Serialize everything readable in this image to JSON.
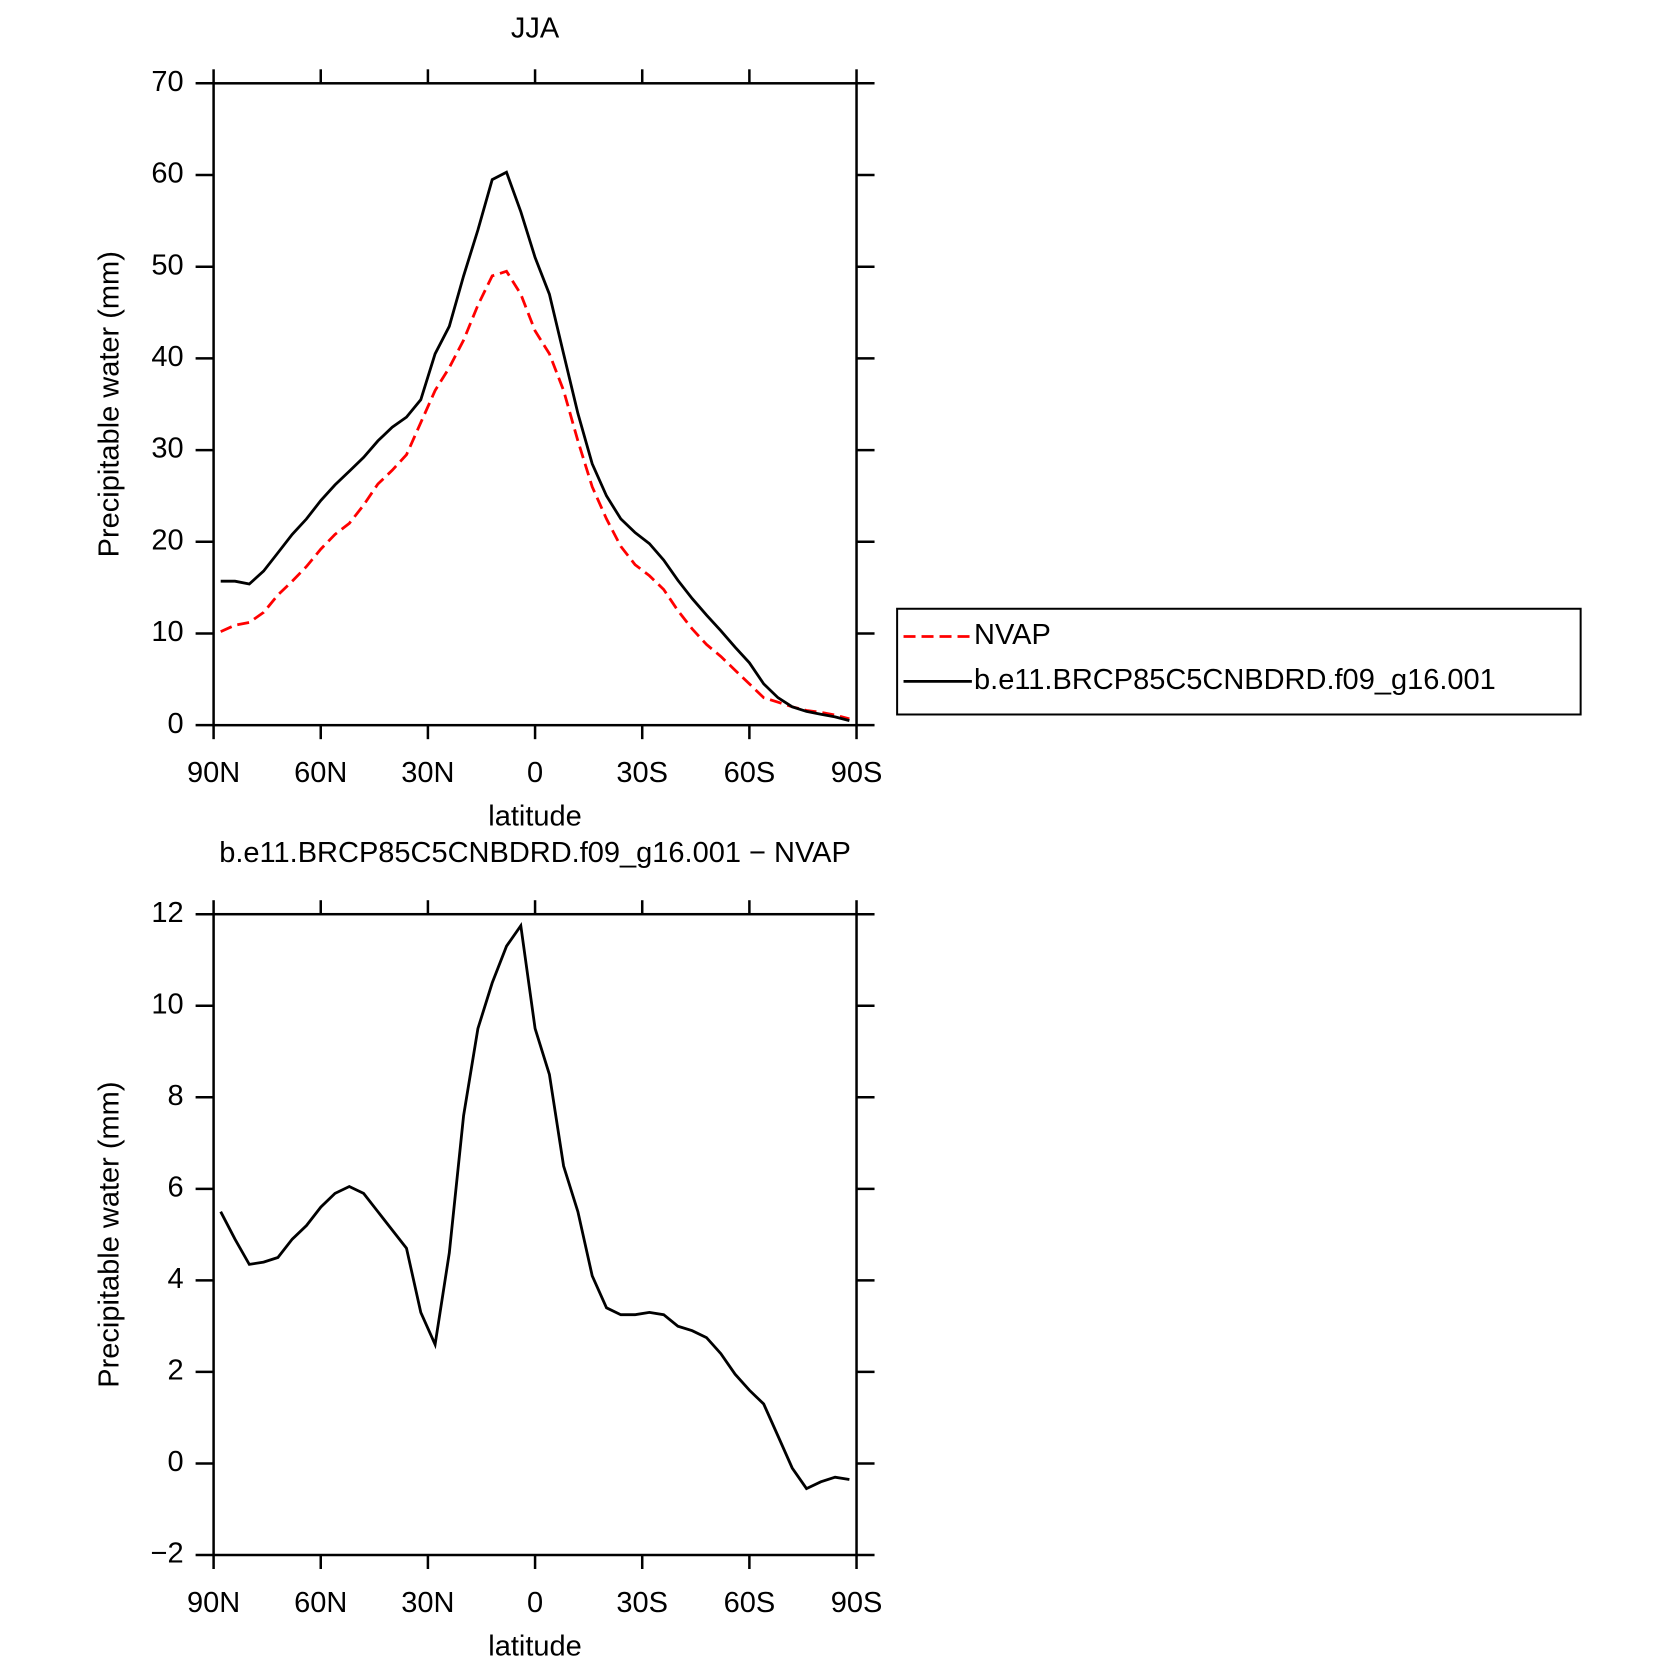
{
  "chart_data": [
    {
      "type": "line",
      "title": "JJA",
      "x_label": "latitude",
      "y_label": "Precipitable water (mm)",
      "x": [
        88,
        84,
        80,
        76,
        72,
        68,
        64,
        60,
        56,
        52,
        48,
        44,
        40,
        36,
        32,
        28,
        24,
        20,
        16,
        12,
        8,
        4,
        0,
        -4,
        -8,
        -12,
        -16,
        -20,
        -24,
        -28,
        -32,
        -36,
        -40,
        -44,
        -48,
        -52,
        -56,
        -60,
        -64,
        -68,
        -72,
        -76,
        -80,
        -84,
        -88
      ],
      "xlim": [
        90,
        -90
      ],
      "xticks": [
        {
          "value": 90,
          "label": "90N"
        },
        {
          "value": 60,
          "label": "60N"
        },
        {
          "value": 30,
          "label": "30N"
        },
        0,
        {
          "value": -30,
          "label": "30S"
        },
        {
          "value": -60,
          "label": "60S"
        },
        {
          "value": -90,
          "label": "90S"
        }
      ],
      "ylim": [
        0,
        70
      ],
      "yticks": [
        0,
        10,
        20,
        30,
        40,
        50,
        60,
        70
      ],
      "legend": "right",
      "series": [
        {
          "name": "NVAP",
          "color": "#ff0000",
          "dashed": true,
          "values": [
            10.2,
            10.9,
            11.2,
            12.3,
            14.2,
            15.7,
            17.3,
            19.2,
            20.8,
            22,
            24,
            26.3,
            27.8,
            29.5,
            33,
            36.5,
            39,
            42,
            45.8,
            49,
            49.5,
            47,
            43,
            40.5,
            36.5,
            31,
            26,
            22.5,
            19.5,
            17.5,
            16.3,
            14.8,
            12.5,
            10.5,
            8.8,
            7.5,
            6,
            4.5,
            3,
            2.5,
            2,
            1.6,
            1.4,
            1.1,
            0.7
          ]
        },
        {
          "name": "b.e11.BRCP85C5CNBDRD.f09_g16.001",
          "color": "#000000",
          "dashed": false,
          "values": [
            15.7,
            15.7,
            15.4,
            16.8,
            18.8,
            20.8,
            22.5,
            24.5,
            26.2,
            27.7,
            29.2,
            31,
            32.5,
            33.6,
            35.5,
            40.5,
            43.5,
            49,
            54,
            59.5,
            60.3,
            56,
            51,
            47,
            40.5,
            34,
            28.5,
            25,
            22.5,
            21,
            19.8,
            18,
            15.8,
            13.8,
            12,
            10.3,
            8.5,
            6.8,
            4.5,
            3,
            2,
            1.5,
            1.2,
            0.9,
            0.5
          ]
        }
      ]
    },
    {
      "type": "line",
      "title": "b.e11.BRCP85C5CNBDRD.f09_g16.001 − NVAP",
      "x_label": "latitude",
      "y_label": "Precipitable water (mm)",
      "x": [
        88,
        84,
        80,
        76,
        72,
        68,
        64,
        60,
        56,
        52,
        48,
        44,
        40,
        36,
        32,
        28,
        24,
        20,
        16,
        12,
        8,
        4,
        0,
        -4,
        -8,
        -12,
        -16,
        -20,
        -24,
        -28,
        -32,
        -36,
        -40,
        -44,
        -48,
        -52,
        -56,
        -60,
        -64,
        -68,
        -72,
        -76,
        -80,
        -84,
        -88
      ],
      "xlim": [
        90,
        -90
      ],
      "xticks": [
        {
          "value": 90,
          "label": "90N"
        },
        {
          "value": 60,
          "label": "60N"
        },
        {
          "value": 30,
          "label": "30N"
        },
        0,
        {
          "value": -30,
          "label": "30S"
        },
        {
          "value": -60,
          "label": "60S"
        },
        {
          "value": -90,
          "label": "90S"
        }
      ],
      "ylim": [
        -2,
        12
      ],
      "yticks": [
        {
          "value": -2,
          "label": "−2"
        },
        0,
        2,
        4,
        6,
        8,
        10,
        12
      ],
      "series": [
        {
          "color": "#000000",
          "dashed": false,
          "values": [
            5.5,
            4.9,
            4.35,
            4.4,
            4.5,
            4.9,
            5.2,
            5.6,
            5.9,
            6.05,
            5.9,
            5.5,
            5.1,
            4.7,
            3.3,
            2.6,
            4.6,
            7.6,
            9.5,
            10.5,
            11.3,
            11.75,
            9.5,
            8.5,
            6.5,
            5.5,
            4.1,
            3.4,
            3.25,
            3.25,
            3.3,
            3.25,
            3.0,
            2.9,
            2.75,
            2.4,
            1.95,
            1.6,
            1.3,
            0.6,
            -0.1,
            -0.55,
            -0.4,
            -0.3,
            -0.35
          ]
        }
      ]
    }
  ]
}
